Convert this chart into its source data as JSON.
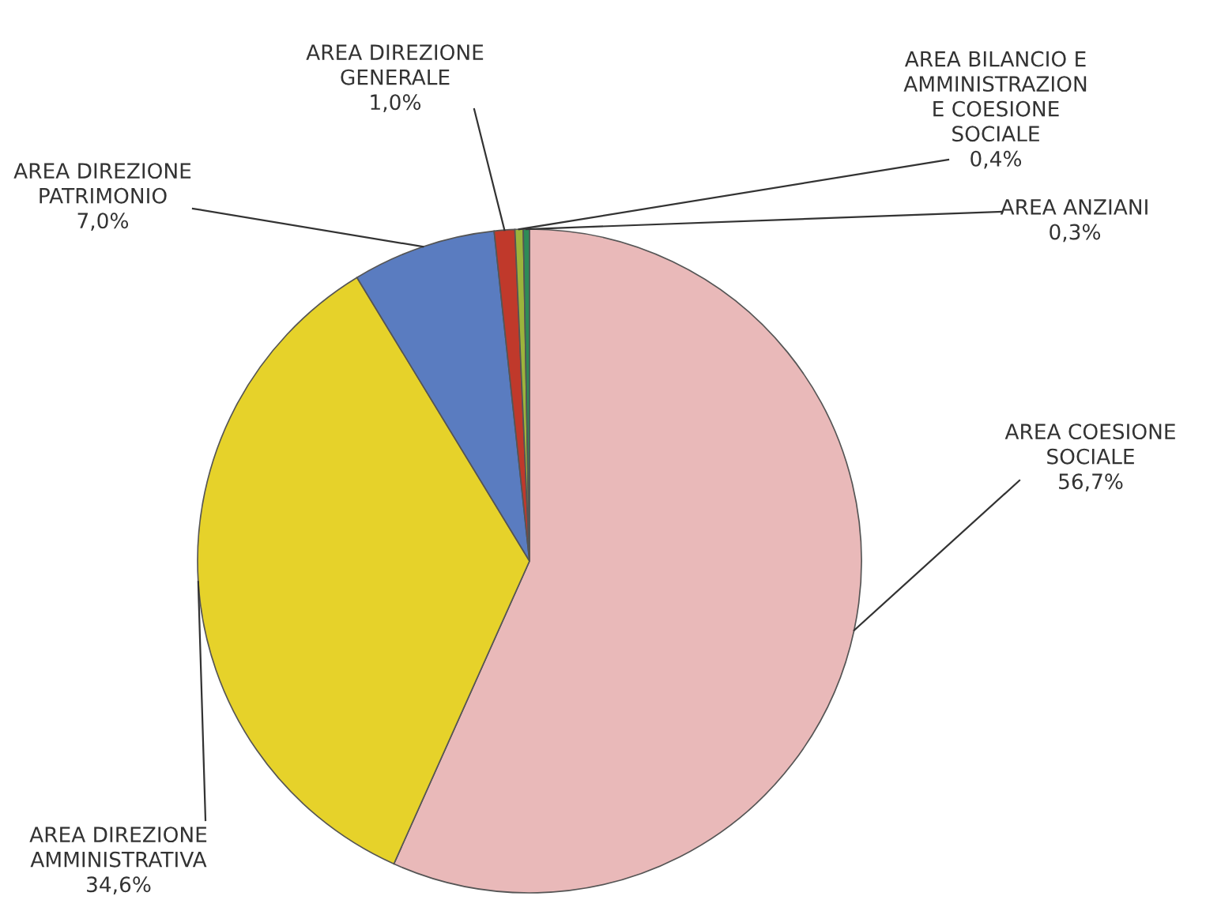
{
  "chart_data": {
    "type": "pie",
    "categories": [
      "AREA COESIONE\nSOCIALE",
      "AREA DIREZIONE\nAMMINISTRATIVA",
      "AREA DIREZIONE\nPATRIMONIO",
      "AREA DIREZIONE\nGENERALE",
      "AREA BILANCIO E\nAMMINISTRAZION\nE COESIONE\nSOCIALE",
      "AREA ANZIANI"
    ],
    "values": [
      56.7,
      34.6,
      7.0,
      1.0,
      0.4,
      0.3
    ],
    "value_labels": [
      "56,7%",
      "34,6%",
      "7,0%",
      "1,0%",
      "0,4%",
      "0,3%"
    ],
    "colors": [
      "#e9b9b9",
      "#e6d22a",
      "#5a7cc0",
      "#c0392b",
      "#9cb43c",
      "#2e8b57"
    ]
  }
}
